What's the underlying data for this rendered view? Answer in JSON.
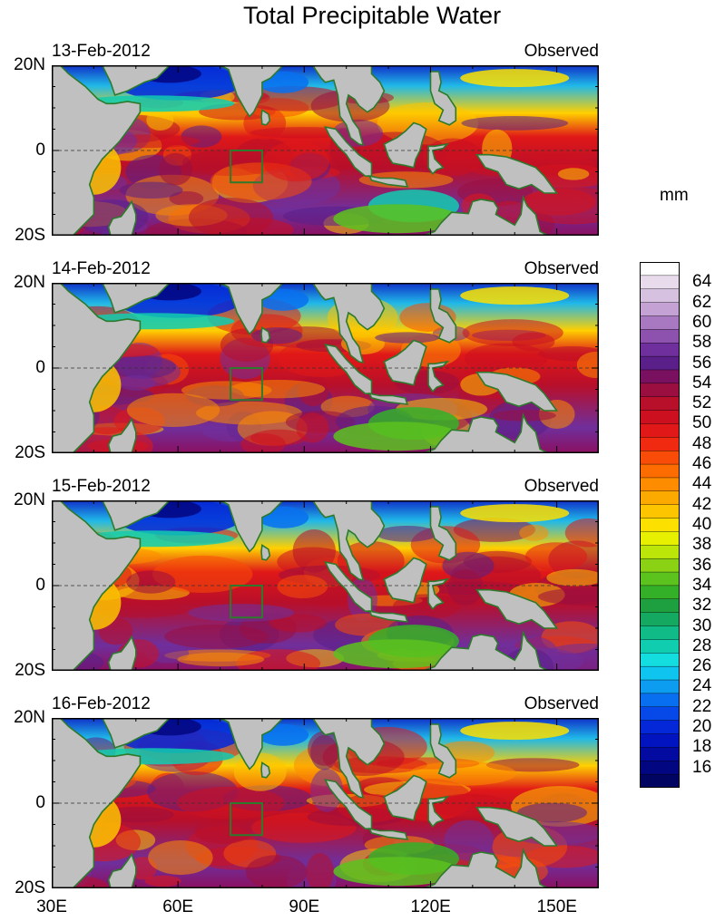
{
  "title": "Total Precipitable Water",
  "units": "mm",
  "panels": [
    {
      "date": "13-Feb-2012",
      "type": "Observed"
    },
    {
      "date": "14-Feb-2012",
      "type": "Observed"
    },
    {
      "date": "15-Feb-2012",
      "type": "Observed"
    },
    {
      "date": "16-Feb-2012",
      "type": "Observed"
    }
  ],
  "lat_labels": [
    "20N",
    "0",
    "20S"
  ],
  "lon_labels": [
    "30E",
    "60E",
    "90E",
    "120E",
    "150E"
  ],
  "colorbar": {
    "labels": [
      "64",
      "62",
      "60",
      "58",
      "56",
      "54",
      "52",
      "50",
      "48",
      "46",
      "44",
      "42",
      "40",
      "38",
      "36",
      "34",
      "32",
      "30",
      "28",
      "26",
      "24",
      "22",
      "20",
      "18",
      "16"
    ],
    "colors": [
      "#ffffff",
      "#e8dcec",
      "#d6c2e0",
      "#c4a3d4",
      "#a879c0",
      "#8c52ae",
      "#6f2f9c",
      "#5a1f88",
      "#7a1060",
      "#9a0f40",
      "#b80f2a",
      "#cc1020",
      "#e01818",
      "#f02a10",
      "#f84c08",
      "#fd6c00",
      "#fd8c00",
      "#fdaa00",
      "#fdc400",
      "#fbe000",
      "#e6f000",
      "#bce60a",
      "#8cd214",
      "#5cc21e",
      "#34b028",
      "#1ea040",
      "#14a860",
      "#10bb88",
      "#10cdb0",
      "#14dde0",
      "#10c4f0",
      "#0c9cf0",
      "#0870f0",
      "#0648e8",
      "#0428d8",
      "#0214c0",
      "#020aa0",
      "#020680",
      "#010460"
    ],
    "range": [
      14,
      66
    ]
  },
  "map_colors": {
    "land": "#c0c0c0",
    "coast": "#2d7a2d",
    "box": "#2d7a2d"
  }
}
